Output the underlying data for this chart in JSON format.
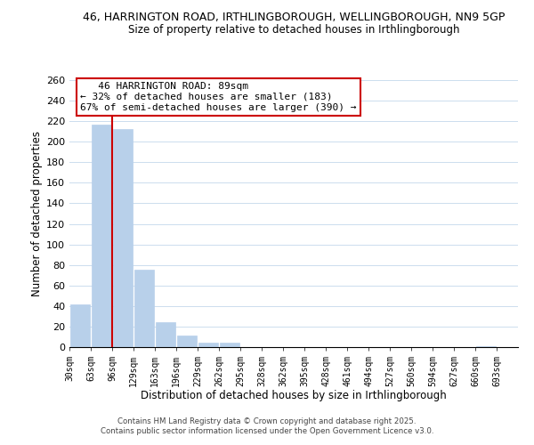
{
  "title": "46, HARRINGTON ROAD, IRTHLINGBOROUGH, WELLINGBOROUGH, NN9 5GP",
  "subtitle": "Size of property relative to detached houses in Irthlingborough",
  "xlabel": "Distribution of detached houses by size in Irthlingborough",
  "ylabel": "Number of detached properties",
  "bar_values": [
    42,
    217,
    212,
    75,
    24,
    11,
    4,
    4,
    0,
    0,
    0,
    0,
    0,
    0,
    0,
    0,
    0,
    0,
    0,
    1,
    0
  ],
  "bar_labels": [
    "30sqm",
    "63sqm",
    "96sqm",
    "129sqm",
    "163sqm",
    "196sqm",
    "229sqm",
    "262sqm",
    "295sqm",
    "328sqm",
    "362sqm",
    "395sqm",
    "428sqm",
    "461sqm",
    "494sqm",
    "527sqm",
    "560sqm",
    "594sqm",
    "627sqm",
    "660sqm",
    "693sqm"
  ],
  "bar_color": "#b8d0ea",
  "bar_edge_color": "#b8d0ea",
  "vline_x_index": 2,
  "vline_color": "#cc0000",
  "ylim": [
    0,
    260
  ],
  "yticks": [
    0,
    20,
    40,
    60,
    80,
    100,
    120,
    140,
    160,
    180,
    200,
    220,
    240,
    260
  ],
  "annotation_title": "46 HARRINGTON ROAD: 89sqm",
  "annotation_line1": "← 32% of detached houses are smaller (183)",
  "annotation_line2": "67% of semi-detached houses are larger (390) →",
  "background_color": "#ffffff",
  "grid_color": "#ccddee",
  "footer1": "Contains HM Land Registry data © Crown copyright and database right 2025.",
  "footer2": "Contains public sector information licensed under the Open Government Licence v3.0."
}
